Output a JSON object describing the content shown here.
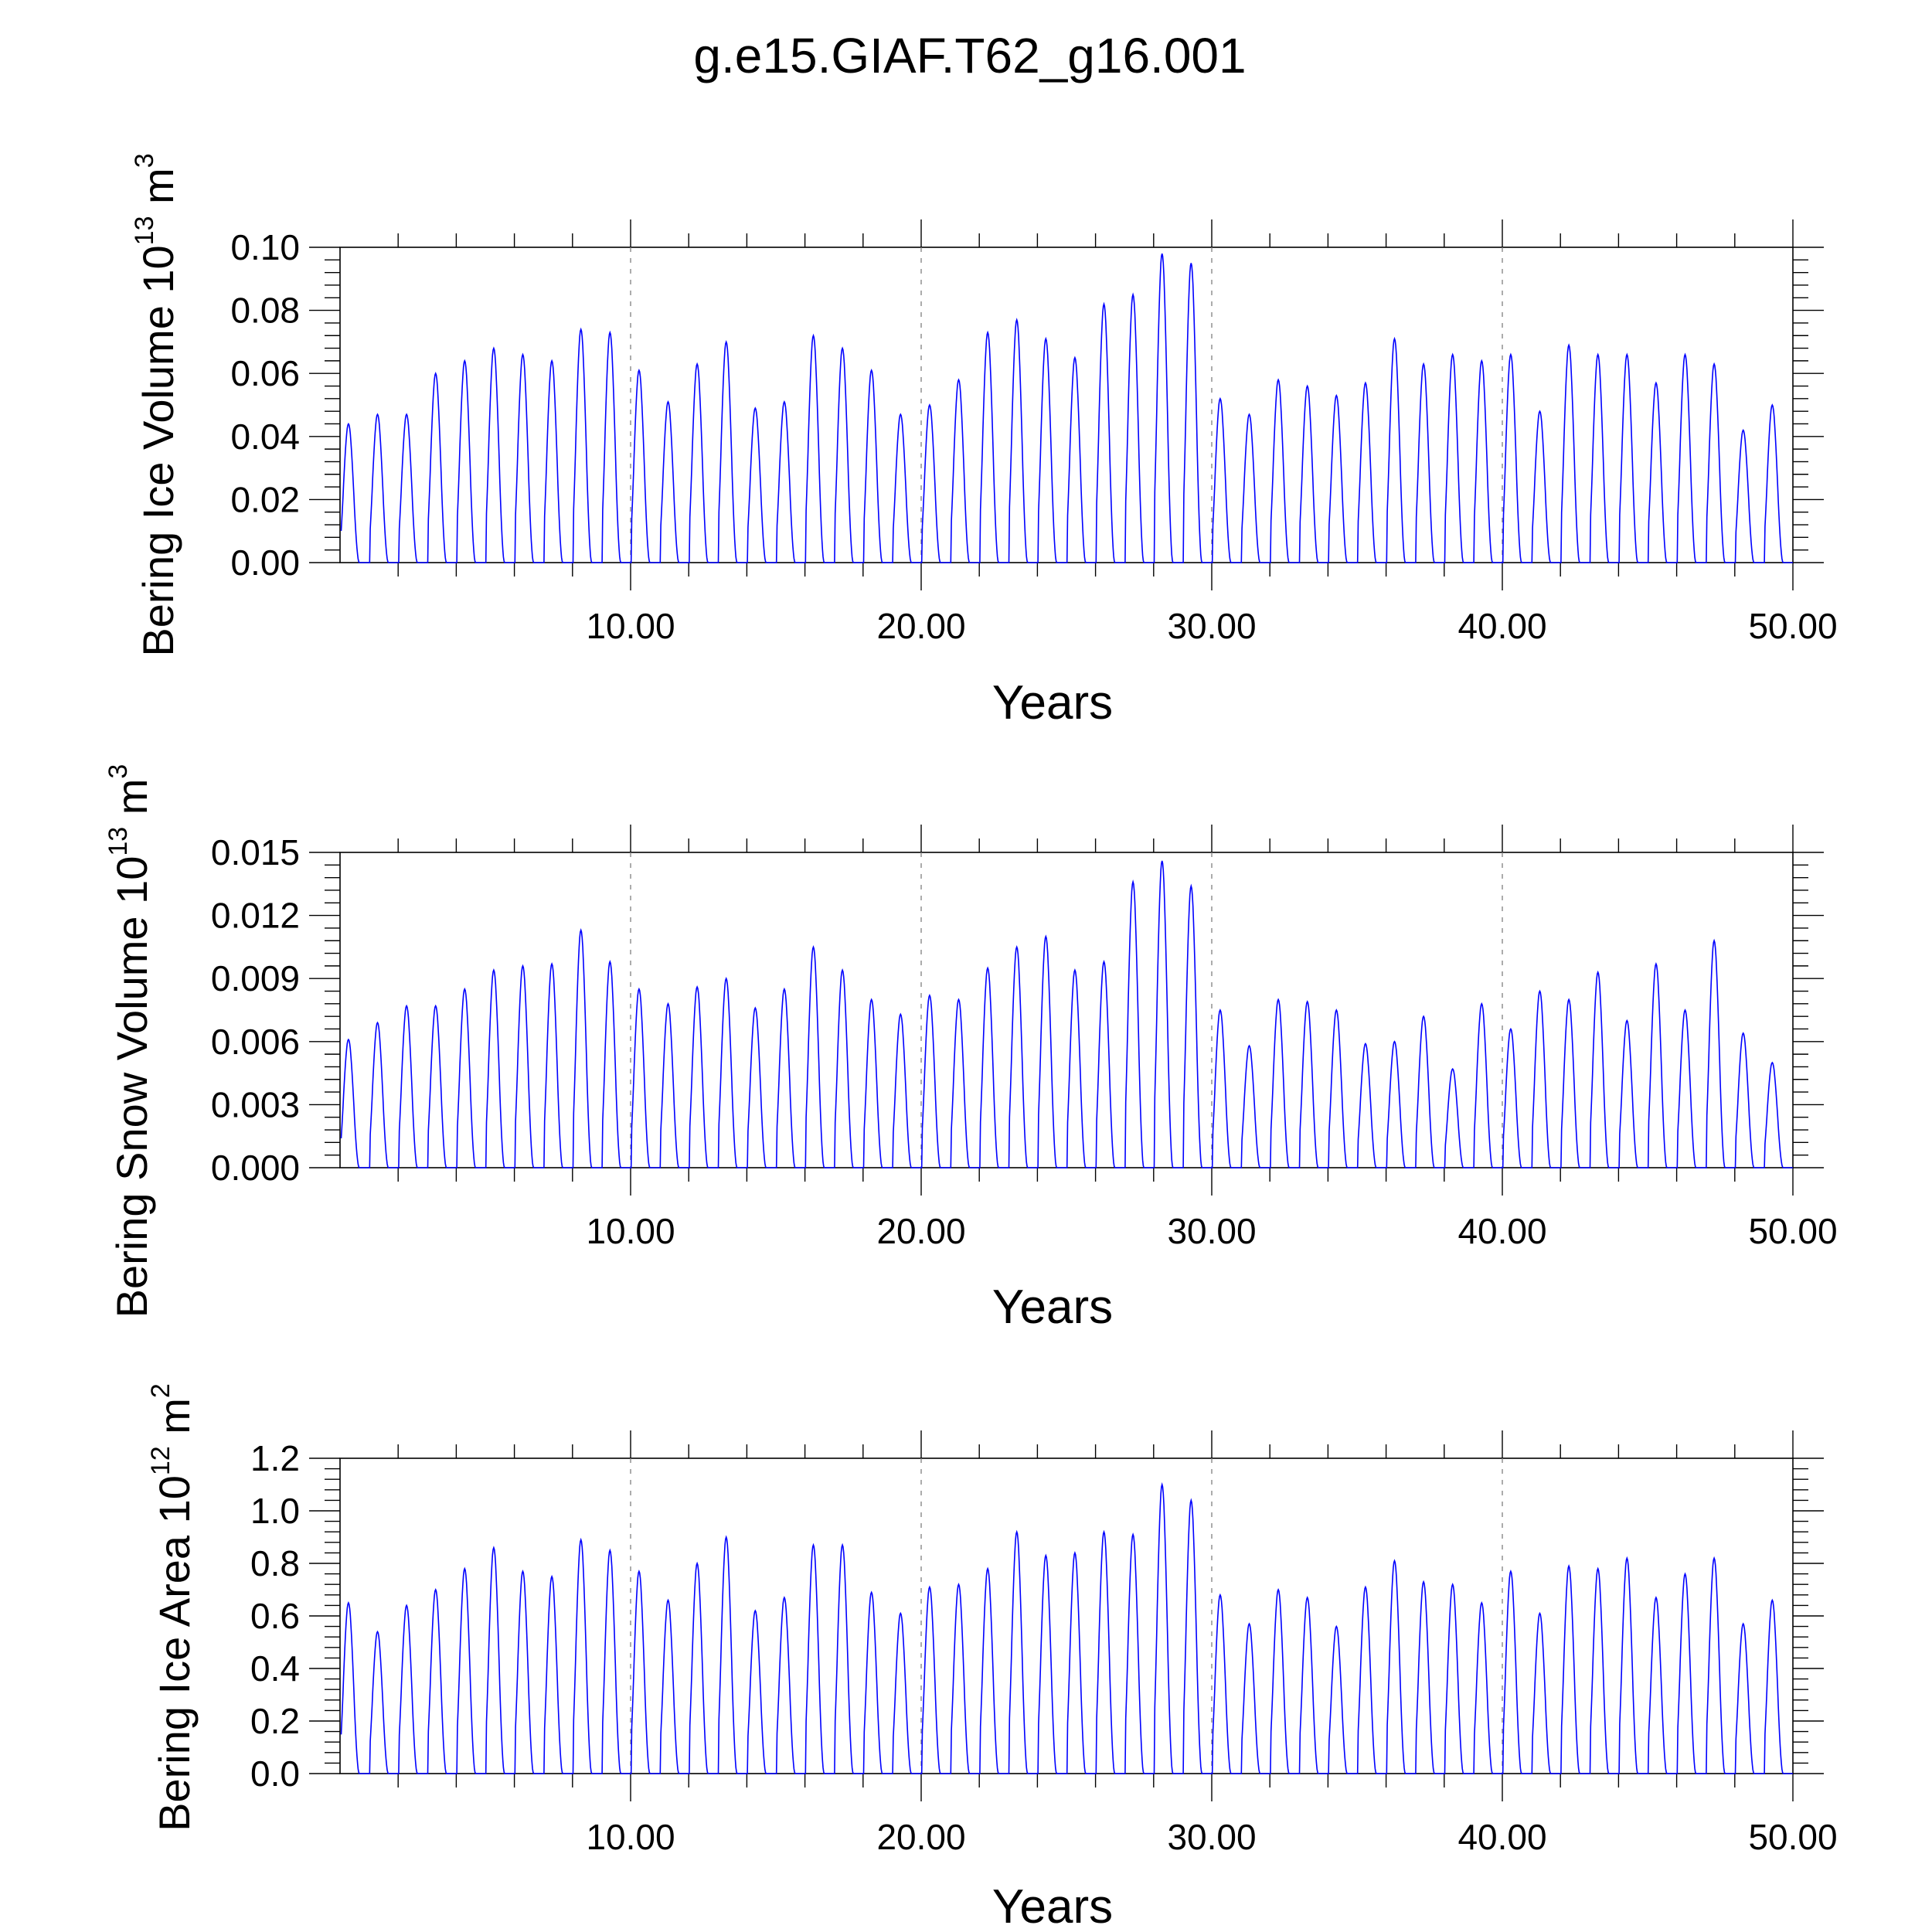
{
  "figure": {
    "title": "g.e15.GIAF.T62_g16.001"
  },
  "chart_data": [
    {
      "type": "line",
      "title": "",
      "xlabel": "Years",
      "ylabel_main": "Bering Ice Volume 10",
      "ylabel_exp": "13",
      "ylabel_unit": " m",
      "ylabel_unit_exp": "3",
      "xlim": [
        0,
        50
      ],
      "ylim": [
        0,
        0.1
      ],
      "x_ticks": [
        "10.00",
        "20.00",
        "30.00",
        "40.00",
        "50.00"
      ],
      "y_ticks": [
        "0.00",
        "0.02",
        "0.04",
        "0.06",
        "0.08",
        "0.10"
      ],
      "grid": "dashed vertical at 10, 20, 30, 40",
      "color": "#0000ff",
      "series": [
        {
          "x_start": 0.04,
          "x_step": 1,
          "annual_peaks": [
            0.044,
            0.047,
            0.047,
            0.06,
            0.064,
            0.068,
            0.066,
            0.064,
            0.074,
            0.073,
            0.061,
            0.051,
            0.063,
            0.07,
            0.049,
            0.051,
            0.072,
            0.068,
            0.061,
            0.047,
            0.05,
            0.058,
            0.073,
            0.077,
            0.071,
            0.065,
            0.082,
            0.085,
            0.098,
            0.095,
            0.052,
            0.047,
            0.058,
            0.056,
            0.053,
            0.057,
            0.071,
            0.063,
            0.066,
            0.064,
            0.066,
            0.048,
            0.069,
            0.066,
            0.066,
            0.057,
            0.066,
            0.063,
            0.042,
            0.05
          ]
        }
      ]
    },
    {
      "type": "line",
      "title": "",
      "xlabel": "Years",
      "ylabel_main": "Bering Snow Volume 10",
      "ylabel_exp": "13",
      "ylabel_unit": " m",
      "ylabel_unit_exp": "3",
      "xlim": [
        0,
        50
      ],
      "ylim": [
        0,
        0.015
      ],
      "x_ticks": [
        "10.00",
        "20.00",
        "30.00",
        "40.00",
        "50.00"
      ],
      "y_ticks": [
        "0.000",
        "0.003",
        "0.006",
        "0.009",
        "0.012",
        "0.015"
      ],
      "grid": "dashed vertical at 10, 20, 30, 40",
      "color": "#0000ff",
      "series": [
        {
          "x_start": 0.04,
          "x_step": 1,
          "annual_peaks": [
            0.0061,
            0.0069,
            0.0077,
            0.0077,
            0.0085,
            0.0094,
            0.0096,
            0.0097,
            0.0113,
            0.0098,
            0.0085,
            0.0078,
            0.0086,
            0.009,
            0.0076,
            0.0085,
            0.0105,
            0.0094,
            0.008,
            0.0073,
            0.0082,
            0.008,
            0.0095,
            0.0105,
            0.011,
            0.0094,
            0.0098,
            0.0136,
            0.0146,
            0.0134,
            0.0075,
            0.0058,
            0.008,
            0.0079,
            0.0075,
            0.0059,
            0.006,
            0.0072,
            0.0047,
            0.0078,
            0.0066,
            0.0084,
            0.008,
            0.0093,
            0.007,
            0.0097,
            0.0075,
            0.0108,
            0.0064,
            0.005
          ]
        }
      ]
    },
    {
      "type": "line",
      "title": "",
      "xlabel": "Years",
      "ylabel_main": "Bering Ice Area 10",
      "ylabel_exp": "12",
      "ylabel_unit": " m",
      "ylabel_unit_exp": "2",
      "xlim": [
        0,
        50
      ],
      "ylim": [
        0,
        1.2
      ],
      "x_ticks": [
        "10.00",
        "20.00",
        "30.00",
        "40.00",
        "50.00"
      ],
      "y_ticks": [
        "0.0",
        "0.2",
        "0.4",
        "0.6",
        "0.8",
        "1.0",
        "1.2"
      ],
      "grid": "dashed vertical at 10, 20, 30, 40",
      "color": "#0000ff",
      "series": [
        {
          "x_start": 0.04,
          "x_step": 1,
          "annual_peaks": [
            0.65,
            0.54,
            0.64,
            0.7,
            0.78,
            0.86,
            0.77,
            0.75,
            0.89,
            0.85,
            0.77,
            0.66,
            0.8,
            0.9,
            0.62,
            0.67,
            0.87,
            0.87,
            0.69,
            0.61,
            0.71,
            0.72,
            0.78,
            0.92,
            0.83,
            0.84,
            0.92,
            0.91,
            1.1,
            1.04,
            0.68,
            0.57,
            0.7,
            0.67,
            0.56,
            0.71,
            0.81,
            0.73,
            0.72,
            0.65,
            0.77,
            0.61,
            0.79,
            0.78,
            0.82,
            0.67,
            0.76,
            0.82,
            0.57,
            0.66
          ]
        }
      ]
    }
  ]
}
